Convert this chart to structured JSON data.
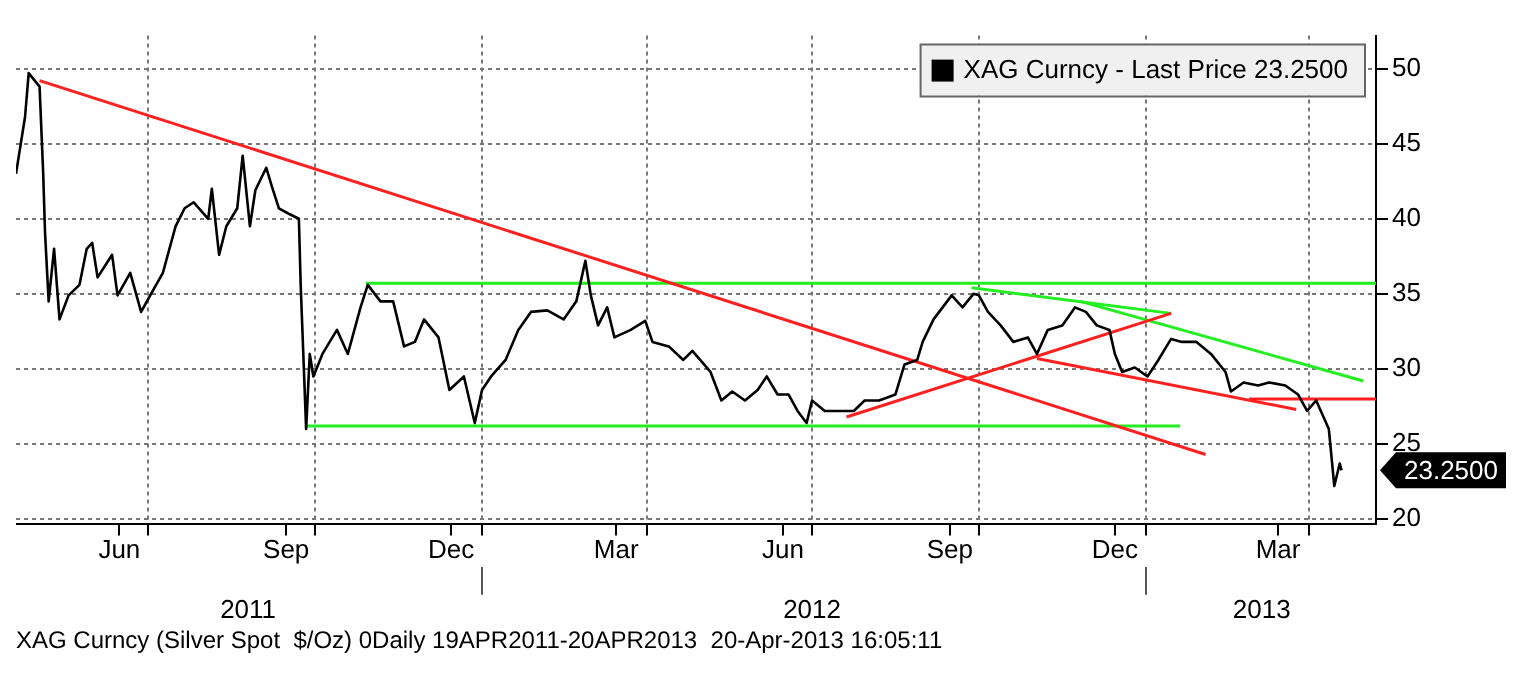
{
  "chart_data": {
    "type": "line",
    "x": [
      "2011-04-19",
      "2011-04-24",
      "2011-04-26",
      "2011-05-02",
      "2011-05-04",
      "2011-05-05",
      "2011-05-07",
      "2011-05-10",
      "2011-05-13",
      "2011-05-18",
      "2011-05-24",
      "2011-05-28",
      "2011-05-31",
      "2011-06-03",
      "2011-06-11",
      "2011-06-14",
      "2011-06-21",
      "2011-06-27",
      "2011-07-02",
      "2011-07-09",
      "2011-07-16",
      "2011-07-21",
      "2011-07-26",
      "2011-08-03",
      "2011-08-05",
      "2011-08-09",
      "2011-08-13",
      "2011-08-19",
      "2011-08-22",
      "2011-08-26",
      "2011-08-29",
      "2011-09-04",
      "2011-09-07",
      "2011-09-11",
      "2011-09-17",
      "2011-09-22",
      "2011-09-23",
      "2011-09-26",
      "2011-09-28",
      "2011-09-30",
      "2011-10-05",
      "2011-10-13",
      "2011-10-19",
      "2011-10-26",
      "2011-10-30",
      "2011-11-06",
      "2011-11-13",
      "2011-11-19",
      "2011-11-25",
      "2011-11-30",
      "2011-12-08",
      "2011-12-14",
      "2011-12-22",
      "2011-12-28",
      "2012-01-01",
      "2012-01-06",
      "2012-01-14",
      "2012-01-21",
      "2012-01-28",
      "2012-02-06",
      "2012-02-15",
      "2012-02-22",
      "2012-02-27",
      "2012-03-01",
      "2012-03-05",
      "2012-03-10",
      "2012-03-14",
      "2012-03-23",
      "2012-03-31",
      "2012-04-04",
      "2012-04-13",
      "2012-04-21",
      "2012-04-26",
      "2012-05-06",
      "2012-05-12",
      "2012-05-18",
      "2012-05-25",
      "2012-06-01",
      "2012-06-06",
      "2012-06-12",
      "2012-06-18",
      "2012-06-23",
      "2012-06-28",
      "2012-07-01",
      "2012-07-08",
      "2012-07-17",
      "2012-07-24",
      "2012-07-30",
      "2012-08-07",
      "2012-08-16",
      "2012-08-21",
      "2012-08-28",
      "2012-08-31",
      "2012-09-06",
      "2012-09-11",
      "2012-09-16",
      "2012-09-22",
      "2012-09-28",
      "2012-10-01",
      "2012-10-06",
      "2012-10-13",
      "2012-10-20",
      "2012-10-28",
      "2012-11-02",
      "2012-11-08",
      "2012-11-16",
      "2012-11-23",
      "2012-11-29",
      "2012-12-05",
      "2012-12-12",
      "2012-12-15",
      "2012-12-19",
      "2012-12-26",
      "2013-01-02",
      "2013-01-08",
      "2013-01-15",
      "2013-01-21",
      "2013-01-29",
      "2013-02-06",
      "2013-02-14",
      "2013-02-17",
      "2013-02-24",
      "2013-03-04",
      "2013-03-10",
      "2013-03-19",
      "2013-03-26",
      "2013-03-31",
      "2013-04-05",
      "2013-04-12",
      "2013-04-15",
      "2013-04-18",
      "2013-04-19"
    ],
    "series": [
      {
        "name": "XAG Curncy - Last Price 23.2500",
        "color": "#000000",
        "values": [
          43.0,
          46.8,
          49.7,
          48.8,
          43.0,
          39.1,
          34.5,
          38.0,
          33.3,
          34.9,
          35.6,
          38.0,
          38.4,
          36.1,
          37.6,
          34.9,
          36.4,
          33.8,
          34.9,
          36.4,
          39.5,
          40.7,
          41.1,
          40.0,
          42.0,
          37.6,
          39.5,
          40.7,
          44.2,
          39.5,
          41.9,
          43.4,
          42.2,
          40.7,
          40.3,
          40.0,
          35.6,
          26.0,
          31.0,
          29.5,
          31.0,
          32.6,
          31.0,
          34.1,
          35.6,
          34.5,
          34.5,
          31.5,
          31.8,
          33.3,
          32.1,
          28.6,
          29.5,
          26.4,
          28.6,
          29.5,
          30.6,
          32.6,
          33.8,
          33.9,
          33.3,
          34.5,
          37.2,
          34.9,
          32.9,
          34.1,
          32.1,
          32.6,
          33.2,
          31.8,
          31.5,
          30.6,
          31.2,
          29.8,
          27.9,
          28.5,
          27.9,
          28.6,
          29.5,
          28.3,
          28.3,
          27.2,
          26.4,
          27.9,
          27.2,
          27.2,
          27.2,
          27.9,
          27.9,
          28.3,
          30.3,
          30.6,
          31.8,
          33.3,
          34.1,
          34.9,
          34.1,
          35.0,
          34.9,
          33.8,
          32.9,
          31.8,
          32.1,
          31.0,
          32.6,
          32.9,
          34.1,
          33.8,
          32.9,
          32.6,
          31.0,
          29.8,
          30.1,
          29.5,
          30.6,
          32.0,
          31.8,
          31.8,
          31.0,
          29.8,
          28.5,
          29.1,
          28.9,
          29.1,
          28.9,
          28.3,
          27.2,
          27.9,
          26.0,
          22.2,
          23.7,
          23.25
        ]
      },
      {
        "type": "line",
        "color": "#ff2020",
        "x": [
          "2011-05-02",
          "2013-02-03"
        ],
        "values": [
          49.2,
          24.3
        ]
      },
      {
        "type": "line",
        "color": "#22ee22",
        "x": [
          "2011-10-29",
          "2013-05-08"
        ],
        "values": [
          35.7,
          35.7
        ]
      },
      {
        "type": "line",
        "color": "#22ee22",
        "x": [
          "2011-09-26",
          "2013-01-20"
        ],
        "values": [
          26.2,
          26.2
        ]
      },
      {
        "type": "line",
        "color": "#ff2020",
        "x": [
          "2012-07-20",
          "2013-01-15"
        ],
        "values": [
          26.8,
          33.7
        ]
      },
      {
        "type": "line",
        "color": "#ff2020",
        "x": [
          "2012-11-02",
          "2013-03-25"
        ],
        "values": [
          30.7,
          27.3
        ]
      },
      {
        "type": "line",
        "color": "#ff2020",
        "x": [
          "2013-02-27",
          "2013-05-08"
        ],
        "values": [
          28.0,
          28.0
        ]
      },
      {
        "type": "line",
        "color": "#22ee22",
        "x": [
          "2012-09-27",
          "2013-01-15"
        ],
        "values": [
          35.4,
          33.7
        ]
      },
      {
        "type": "line",
        "color": "#22ee22",
        "x": [
          "2012-11-26",
          "2013-05-01"
        ],
        "values": [
          34.5,
          29.2
        ]
      }
    ],
    "xlim": [
      "2011-04-19",
      "2013-05-08"
    ],
    "xticks": [
      {
        "value": "2011-06-15",
        "label": "Jun"
      },
      {
        "value": "2011-07-01",
        "label": null
      },
      {
        "value": "2011-09-15",
        "label": "Sep"
      },
      {
        "value": "2011-10-01",
        "label": null
      },
      {
        "value": "2011-12-15",
        "label": "Dec"
      },
      {
        "value": "2012-01-01",
        "label": null
      },
      {
        "value": "2012-03-15",
        "label": "Mar"
      },
      {
        "value": "2012-04-01",
        "label": null
      },
      {
        "value": "2012-06-15",
        "label": "Jun"
      },
      {
        "value": "2012-07-01",
        "label": null
      },
      {
        "value": "2012-09-15",
        "label": "Sep"
      },
      {
        "value": "2012-10-01",
        "label": null
      },
      {
        "value": "2012-12-15",
        "label": "Dec"
      },
      {
        "value": "2013-01-01",
        "label": null
      },
      {
        "value": "2013-03-15",
        "label": "Mar"
      },
      {
        "value": "2013-04-01",
        "label": null
      }
    ],
    "x2lim": [
      "2011-04-19",
      "2013-05-08"
    ],
    "x2ticks": [
      {
        "value": "2011-08-25",
        "label": "2011"
      },
      {
        "value": "2012-01-01",
        "label": null
      },
      {
        "value": "2012-07-01",
        "label": "2012"
      },
      {
        "value": "2013-01-01",
        "label": null
      },
      {
        "value": "2013-03-06",
        "label": "2013"
      }
    ],
    "ylim": [
      19.7,
      52.2
    ],
    "yticks": [
      20,
      25,
      30,
      35,
      40,
      45,
      50
    ],
    "grid": true,
    "legend": "top right",
    "marker": "none",
    "line_style": "solid",
    "annotations": [
      "23.2500",
      "XAG Curncy (Silver Spot  $/Oz) 0Daily 19APR2011-20APR2013  20-Apr-2013 16:05:11"
    ]
  }
}
